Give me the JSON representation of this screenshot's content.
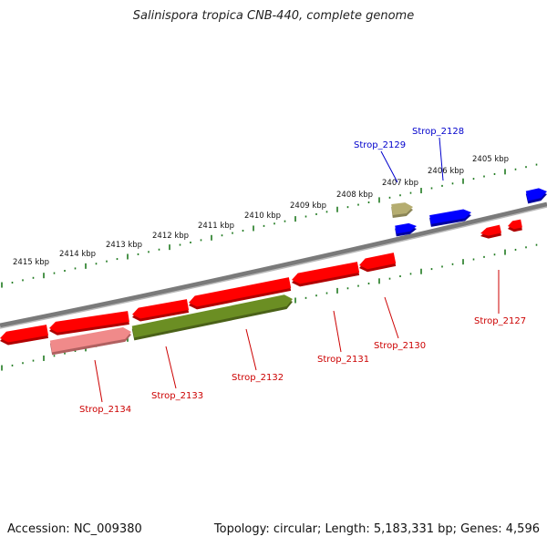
{
  "title": "Salinispora tropica CNB-440, complete genome",
  "footer": {
    "accession": "Accession: NC_009380",
    "summary": "Topology: circular; Length: 5,183,331 bp; Genes: 4,596"
  },
  "colors": {
    "backbone": "#7a7a7a",
    "tick": "#1f7a1f",
    "gene_red": "#ff0000",
    "gene_red_dark": "#b00000",
    "gene_blue": "#0000ff",
    "gene_blue_dark": "#0000a0",
    "gene_olive": "#6b8e23",
    "gene_olive_dark": "#4a6118",
    "gene_khaki": "#b5ad70",
    "gene_pink": "#f08a8a",
    "label_red": "#cc0000",
    "label_blue": "#0000cc"
  },
  "scale_labels": [
    "2405 kbp",
    "2406 kbp",
    "2407 kbp",
    "2408 kbp",
    "2409 kbp",
    "2410 kbp",
    "2411 kbp",
    "2412 kbp",
    "2413 kbp",
    "2414 kbp",
    "2415 kbp"
  ],
  "gene_labels": [
    {
      "name": "Strop_2127",
      "color": "label_red"
    },
    {
      "name": "Strop_2128",
      "color": "label_blue"
    },
    {
      "name": "Strop_2129",
      "color": "label_blue"
    },
    {
      "name": "Strop_2130",
      "color": "label_red"
    },
    {
      "name": "Strop_2131",
      "color": "label_red"
    },
    {
      "name": "Strop_2132",
      "color": "label_red"
    },
    {
      "name": "Strop_2133",
      "color": "label_red"
    },
    {
      "name": "Strop_2134",
      "color": "label_red"
    }
  ]
}
